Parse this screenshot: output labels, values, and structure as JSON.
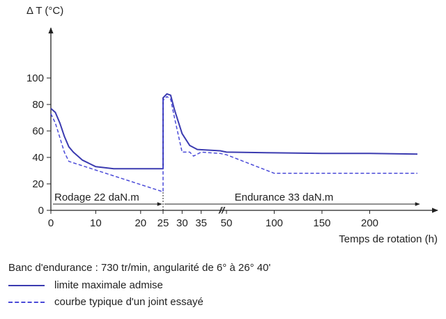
{
  "chart_data": {
    "type": "line",
    "ylabel": "Δ T (°C)",
    "xlabel": "Temps de rotation (h)",
    "ylim": [
      0,
      110
    ],
    "yticks": [
      0,
      20,
      40,
      60,
      80,
      100
    ],
    "x_segments": [
      {
        "range": [
          0,
          25
        ],
        "ticks": [
          0,
          10,
          20,
          25
        ]
      },
      {
        "range": [
          25,
          40
        ],
        "ticks": [
          25,
          30,
          35
        ]
      },
      {
        "range": [
          50,
          250
        ],
        "ticks": [
          50,
          100,
          150,
          200
        ]
      }
    ],
    "axis_break_label": "//",
    "phases": [
      {
        "label": "Rodage 22 daN.m",
        "from": 0,
        "to": 25
      },
      {
        "label": "Endurance 33 daN.m",
        "from": 25,
        "to": 250
      }
    ],
    "series": [
      {
        "name": "limite maximale admise",
        "style": "solid",
        "color": "#3b3bb0",
        "points": [
          [
            0,
            77
          ],
          [
            1,
            74
          ],
          [
            2,
            66
          ],
          [
            3,
            56
          ],
          [
            4,
            48
          ],
          [
            5,
            44
          ],
          [
            7,
            38
          ],
          [
            10,
            33
          ],
          [
            14,
            31.5
          ],
          [
            25,
            31.5
          ],
          [
            25,
            85
          ],
          [
            26,
            88
          ],
          [
            27,
            87
          ],
          [
            28,
            76
          ],
          [
            30,
            58
          ],
          [
            32,
            49
          ],
          [
            34,
            46
          ],
          [
            40,
            45
          ],
          [
            50,
            44
          ],
          [
            100,
            43.5
          ],
          [
            150,
            43
          ],
          [
            200,
            43
          ],
          [
            250,
            42.5
          ]
        ]
      },
      {
        "name": "courbe typique d'un joint essayé",
        "style": "dashed",
        "color": "#4a4ad8",
        "points": [
          [
            0,
            73
          ],
          [
            1,
            66
          ],
          [
            2,
            55
          ],
          [
            3,
            44
          ],
          [
            4,
            37
          ],
          [
            25,
            14
          ],
          [
            25,
            83
          ],
          [
            26,
            86
          ],
          [
            27,
            84
          ],
          [
            28,
            70
          ],
          [
            30,
            44
          ],
          [
            32,
            44
          ],
          [
            33,
            41
          ],
          [
            35,
            44
          ],
          [
            40,
            43
          ],
          [
            50,
            42
          ],
          [
            100,
            28
          ],
          [
            250,
            28
          ]
        ]
      }
    ]
  },
  "caption": "Banc d'endurance : 730 tr/min, angularité de 6° à 26° 40'"
}
